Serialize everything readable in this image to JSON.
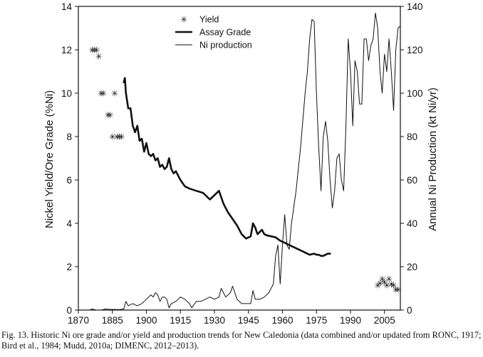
{
  "chart_data": {
    "type": "line",
    "caption": "Fig. 13. Historic Ni ore grade and/or yield and production trends for New Caledonia (data combined and/or updated from RONC, 1917; Bird et al., 1984; Mudd, 2010a; DIMENC, 2012–2013).",
    "xlim": [
      1870,
      2012
    ],
    "x_ticks": [
      1870,
      1885,
      1900,
      1915,
      1930,
      1945,
      1960,
      1975,
      1990,
      2005
    ],
    "y_left": {
      "label": "Nickel Yield/Ore Grade (%Ni)",
      "ylim": [
        0,
        14
      ],
      "ticks": [
        0,
        2,
        4,
        6,
        8,
        10,
        12,
        14
      ]
    },
    "y_right": {
      "label": "Annual Ni Production (kt Ni/yr)",
      "ylim": [
        0,
        140
      ],
      "ticks": [
        0,
        20,
        40,
        60,
        80,
        100,
        120,
        140
      ]
    },
    "legend": {
      "position": "top-center",
      "entries": [
        "Yield",
        "Assay Grade",
        "Ni production"
      ]
    },
    "series": [
      {
        "name": "Yield",
        "style": "markers",
        "marker": "✳",
        "axis": "left",
        "points": [
          [
            1876,
            12
          ],
          [
            1877,
            12
          ],
          [
            1878,
            12
          ],
          [
            1879,
            11.7
          ],
          [
            1880,
            10
          ],
          [
            1881,
            10
          ],
          [
            1883,
            9
          ],
          [
            1884,
            9
          ],
          [
            1885,
            8
          ],
          [
            1886,
            10
          ],
          [
            1887,
            8
          ],
          [
            1888,
            8
          ],
          [
            1889,
            8
          ],
          [
            2002,
            1.15
          ],
          [
            2003,
            1.25
          ],
          [
            2004,
            1.45
          ],
          [
            2005,
            1.3
          ],
          [
            2006,
            1.15
          ],
          [
            2007,
            1.45
          ],
          [
            2008,
            1.2
          ],
          [
            2009,
            1.15
          ],
          [
            2010,
            0.95
          ],
          [
            2011,
            0.95
          ]
        ]
      },
      {
        "name": "Assay Grade",
        "style": "thick-line",
        "axis": "left",
        "points": [
          [
            1890,
            10.5
          ],
          [
            1890.5,
            10.7
          ],
          [
            1891,
            10
          ],
          [
            1892,
            9.3
          ],
          [
            1893,
            9.3
          ],
          [
            1894,
            8.5
          ],
          [
            1895,
            8.2
          ],
          [
            1896,
            8.5
          ],
          [
            1897,
            7.8
          ],
          [
            1898,
            7.9
          ],
          [
            1899,
            7.3
          ],
          [
            1900,
            7.7
          ],
          [
            1901,
            7.2
          ],
          [
            1902,
            7.1
          ],
          [
            1903,
            7.2
          ],
          [
            1904,
            6.9
          ],
          [
            1905,
            7.0
          ],
          [
            1906,
            6.6
          ],
          [
            1907,
            6.7
          ],
          [
            1908,
            6.5
          ],
          [
            1909,
            6.6
          ],
          [
            1910,
            7.0
          ],
          [
            1911,
            6.5
          ],
          [
            1912,
            6.3
          ],
          [
            1913,
            6.4
          ],
          [
            1915,
            6.0
          ],
          [
            1917,
            5.7
          ],
          [
            1919,
            5.6
          ],
          [
            1922,
            5.5
          ],
          [
            1925,
            5.4
          ],
          [
            1928,
            5.1
          ],
          [
            1930,
            5.3
          ],
          [
            1932,
            5.5
          ],
          [
            1934,
            4.9
          ],
          [
            1936,
            4.5
          ],
          [
            1938,
            4.2
          ],
          [
            1940,
            3.9
          ],
          [
            1942,
            3.5
          ],
          [
            1944,
            3.3
          ],
          [
            1946,
            3.4
          ],
          [
            1947,
            4.0
          ],
          [
            1948,
            3.8
          ],
          [
            1949,
            3.5
          ],
          [
            1950,
            3.6
          ],
          [
            1951,
            3.7
          ],
          [
            1952,
            3.5
          ],
          [
            1953,
            3.45
          ],
          [
            1955,
            3.4
          ],
          [
            1957,
            3.35
          ],
          [
            1959,
            3.2
          ],
          [
            1961,
            3.1
          ],
          [
            1963,
            3.0
          ],
          [
            1965,
            2.9
          ],
          [
            1967,
            2.8
          ],
          [
            1969,
            2.7
          ],
          [
            1971,
            2.6
          ],
          [
            1972,
            2.55
          ],
          [
            1974,
            2.6
          ],
          [
            1975,
            2.55
          ],
          [
            1976,
            2.55
          ],
          [
            1977,
            2.5
          ],
          [
            1978,
            2.5
          ],
          [
            1979,
            2.55
          ],
          [
            1980,
            2.6
          ],
          [
            1981,
            2.6
          ]
        ]
      },
      {
        "name": "Ni production",
        "style": "thin-line",
        "axis": "right",
        "points": [
          [
            1875,
            0
          ],
          [
            1876,
            0.5
          ],
          [
            1878,
            0
          ],
          [
            1880,
            0
          ],
          [
            1882,
            0.5
          ],
          [
            1884,
            0.3
          ],
          [
            1886,
            0.3
          ],
          [
            1888,
            0.2
          ],
          [
            1890,
            0.5
          ],
          [
            1891,
            4
          ],
          [
            1892,
            2
          ],
          [
            1894,
            3
          ],
          [
            1896,
            2
          ],
          [
            1898,
            3
          ],
          [
            1900,
            5
          ],
          [
            1902,
            7
          ],
          [
            1903,
            6
          ],
          [
            1904,
            8
          ],
          [
            1905,
            7
          ],
          [
            1906,
            4
          ],
          [
            1907,
            6
          ],
          [
            1908,
            6
          ],
          [
            1909,
            5
          ],
          [
            1910,
            1
          ],
          [
            1911,
            3
          ],
          [
            1913,
            4
          ],
          [
            1915,
            6
          ],
          [
            1917,
            5
          ],
          [
            1919,
            3
          ],
          [
            1920,
            1
          ],
          [
            1922,
            4
          ],
          [
            1924,
            4
          ],
          [
            1926,
            5
          ],
          [
            1928,
            6
          ],
          [
            1930,
            5
          ],
          [
            1932,
            6
          ],
          [
            1933,
            10
          ],
          [
            1934,
            8
          ],
          [
            1935,
            6
          ],
          [
            1937,
            8
          ],
          [
            1938,
            11
          ],
          [
            1940,
            5
          ],
          [
            1942,
            3
          ],
          [
            1944,
            3
          ],
          [
            1946,
            3
          ],
          [
            1947,
            9
          ],
          [
            1948,
            5
          ],
          [
            1950,
            5
          ],
          [
            1952,
            6
          ],
          [
            1954,
            8
          ],
          [
            1956,
            12
          ],
          [
            1957,
            25
          ],
          [
            1958,
            30
          ],
          [
            1959,
            12
          ],
          [
            1960,
            30
          ],
          [
            1961,
            44
          ],
          [
            1962,
            30
          ],
          [
            1963,
            28
          ],
          [
            1964,
            40
          ],
          [
            1966,
            55
          ],
          [
            1968,
            75
          ],
          [
            1970,
            100
          ],
          [
            1971,
            110
          ],
          [
            1972,
            125
          ],
          [
            1973,
            134
          ],
          [
            1974,
            133
          ],
          [
            1975,
            100
          ],
          [
            1976,
            75
          ],
          [
            1977,
            55
          ],
          [
            1978,
            80
          ],
          [
            1979,
            87
          ],
          [
            1980,
            78
          ],
          [
            1981,
            60
          ],
          [
            1982,
            47
          ],
          [
            1983,
            55
          ],
          [
            1984,
            70
          ],
          [
            1985,
            72
          ],
          [
            1986,
            60
          ],
          [
            1987,
            55
          ],
          [
            1988,
            85
          ],
          [
            1989,
            125
          ],
          [
            1990,
            110
          ],
          [
            1991,
            85
          ],
          [
            1992,
            115
          ],
          [
            1993,
            110
          ],
          [
            1994,
            95
          ],
          [
            1995,
            95
          ],
          [
            1996,
            125
          ],
          [
            1997,
            125
          ],
          [
            1998,
            115
          ],
          [
            1999,
            122
          ],
          [
            2000,
            125
          ],
          [
            2001,
            137
          ],
          [
            2002,
            130
          ],
          [
            2003,
            110
          ],
          [
            2004,
            100
          ],
          [
            2005,
            118
          ],
          [
            2006,
            110
          ],
          [
            2007,
            125
          ],
          [
            2008,
            110
          ],
          [
            2009,
            92
          ],
          [
            2010,
            120
          ],
          [
            2011,
            130
          ],
          [
            2012,
            131
          ]
        ]
      }
    ]
  }
}
